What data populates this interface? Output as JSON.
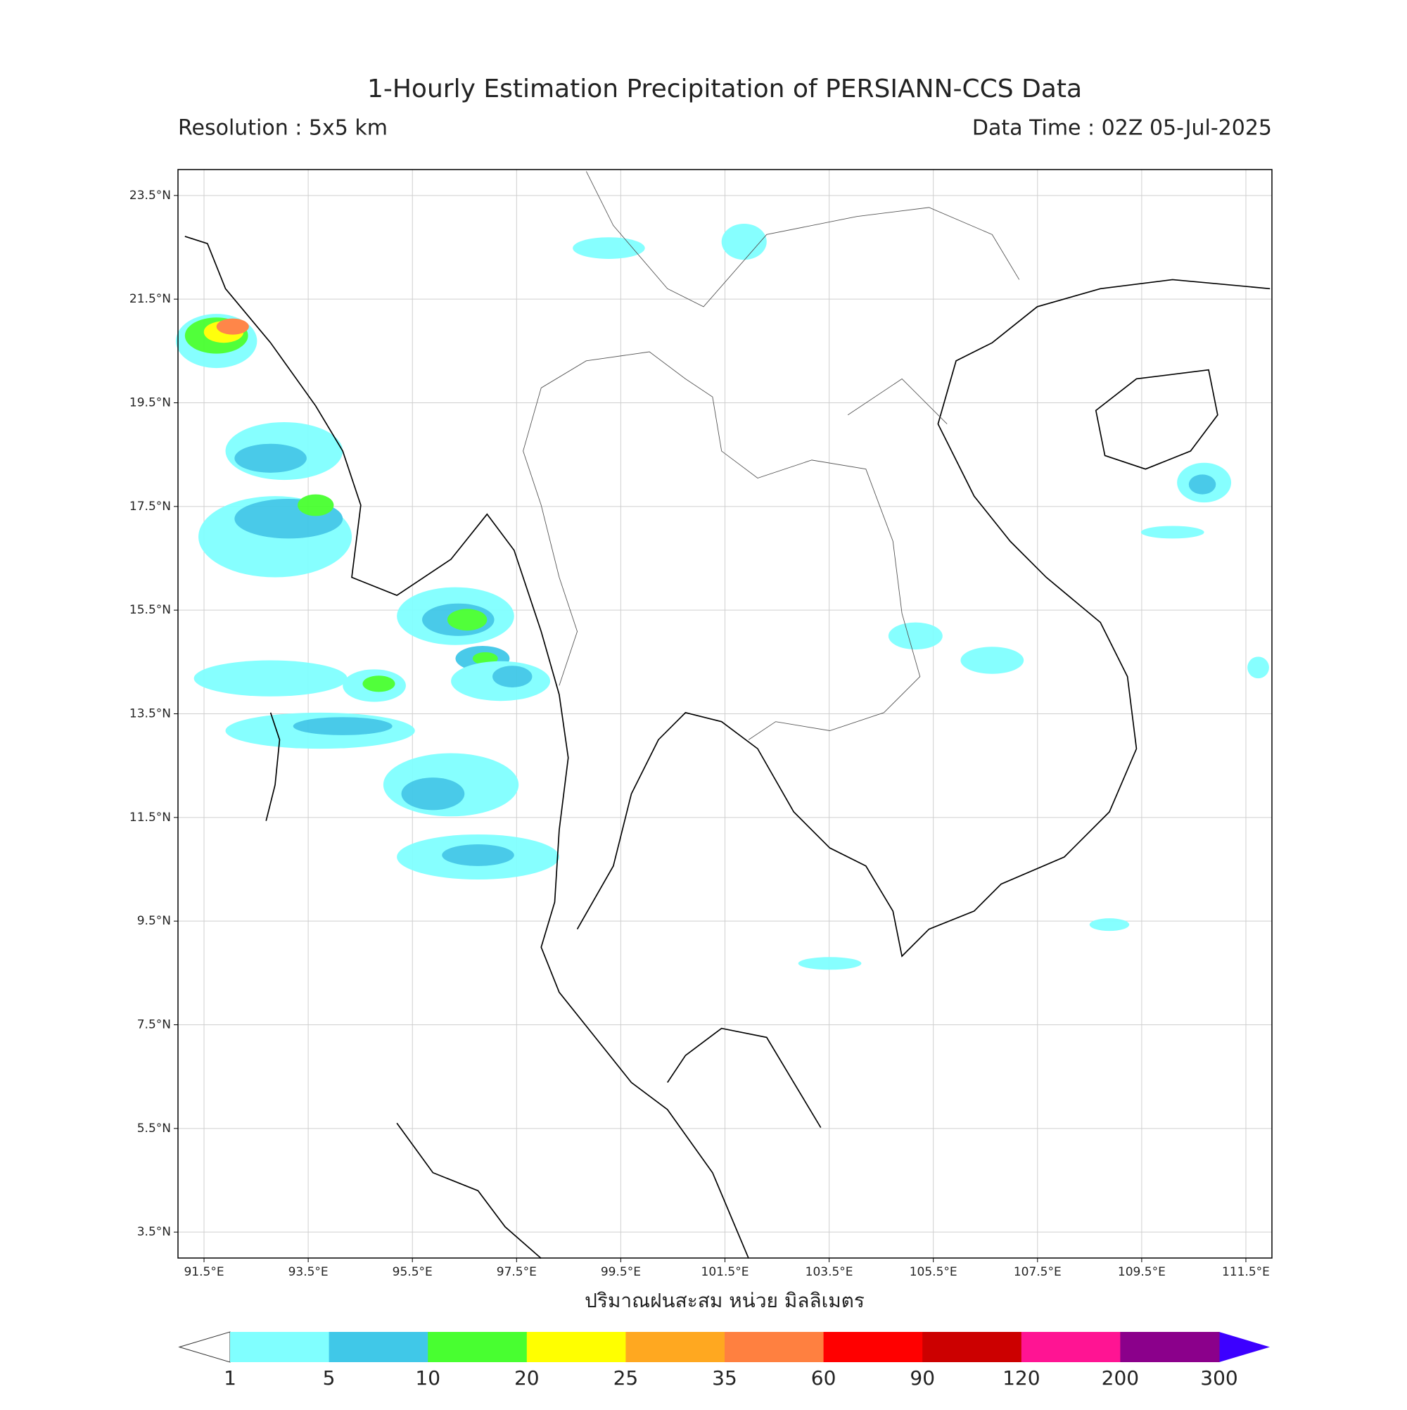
{
  "header": {
    "title": "1-Hourly Estimation Precipitation of PERSIANN-CCS Data",
    "resolution": "Resolution : 5x5 km",
    "data_time": "Data Time : 02Z 05-Jul-2025"
  },
  "map": {
    "lonlim": [
      91,
      112
    ],
    "latlim": [
      3,
      24
    ],
    "grid": true,
    "lonticks": [
      {
        "value": 91.5,
        "label": "91.5°E"
      },
      {
        "value": 93.5,
        "label": "93.5°E"
      },
      {
        "value": 95.5,
        "label": "95.5°E"
      },
      {
        "value": 97.5,
        "label": "97.5°E"
      },
      {
        "value": 99.5,
        "label": "99.5°E"
      },
      {
        "value": 101.5,
        "label": "101.5°E"
      },
      {
        "value": 103.5,
        "label": "103.5°E"
      },
      {
        "value": 105.5,
        "label": "105.5°E"
      },
      {
        "value": 107.5,
        "label": "107.5°E"
      },
      {
        "value": 109.5,
        "label": "109.5°E"
      },
      {
        "value": 111.5,
        "label": "111.5°E"
      }
    ],
    "latticks": [
      {
        "value": 3.5,
        "label": "3.5°N"
      },
      {
        "value": 5.5,
        "label": "5.5°N"
      },
      {
        "value": 7.5,
        "label": "7.5°N"
      },
      {
        "value": 9.5,
        "label": "9.5°N"
      },
      {
        "value": 11.5,
        "label": "11.5°N"
      },
      {
        "value": 13.5,
        "label": "13.5°N"
      },
      {
        "value": 15.5,
        "label": "15.5°N"
      },
      {
        "value": 17.5,
        "label": "17.5°N"
      },
      {
        "value": 19.5,
        "label": "19.5°N"
      },
      {
        "value": 21.5,
        "label": "21.5°N"
      },
      {
        "value": 23.5,
        "label": "23.5°N"
      }
    ]
  },
  "colorbar": {
    "label": "ปริมาณฝนสะสม หน่วย มิลลิเมตร",
    "levels": [
      1,
      5,
      10,
      20,
      25,
      35,
      60,
      90,
      120,
      200,
      300
    ],
    "colors": [
      "#80ffff",
      "#40c8e8",
      "#48ff30",
      "#ffff00",
      "#ffa820",
      "#ff8040",
      "#ff0000",
      "#cc0000",
      "#ff1493",
      "#8b008b"
    ],
    "under_color": "#ffffff",
    "over_color": "#3c00ff"
  }
}
